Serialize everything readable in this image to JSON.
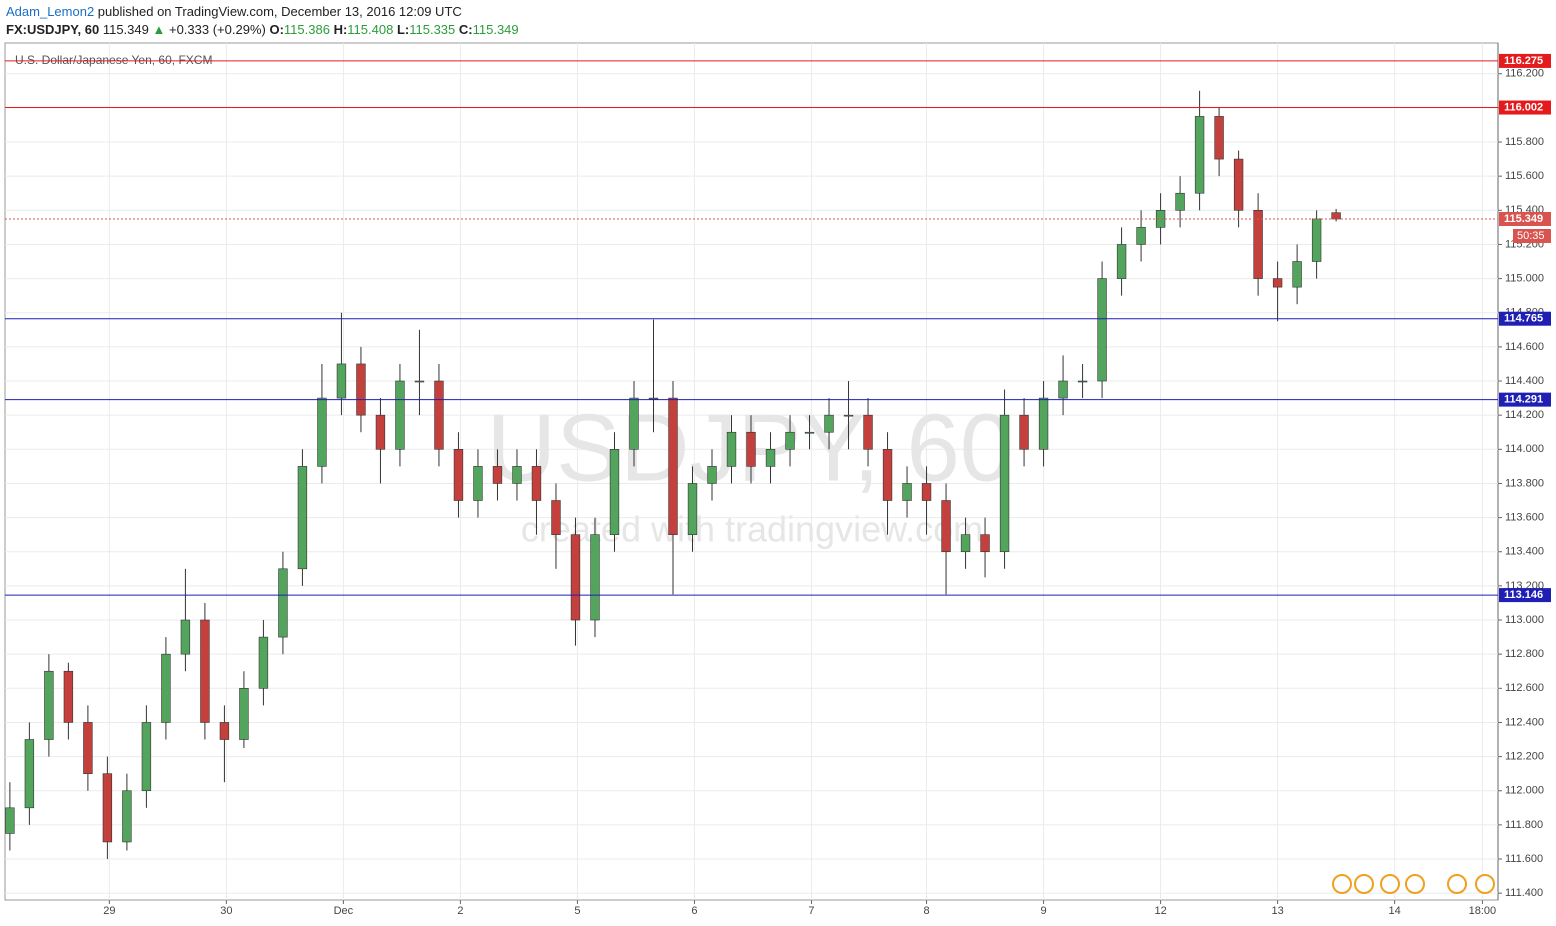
{
  "header": {
    "author": "Adam_Lemon2",
    "published": "published on TradingView.com, December 13, 2016 12:09 UTC"
  },
  "chart_data": {
    "type": "candlestick",
    "symbol": "FX:USDJPY, 60",
    "last": "115.349",
    "change_arrow": "▲",
    "change": "+0.333 (+0.29%)",
    "ohlc_labels": [
      "O:",
      "H:",
      "L:",
      "C:"
    ],
    "ohlc_values": [
      "115.386",
      "115.408",
      "115.335",
      "115.349"
    ],
    "legend": "U.S. Dollar/Japanese Yen, 60, FXCM",
    "watermark": "USDJPY, 60",
    "watermark_sub": "created with tradingview.com",
    "countdown": "50:35",
    "up_color": "#53a55e",
    "down_color": "#c4403c",
    "open": [
      111.75,
      111.9,
      112.3,
      112.7,
      112.4,
      112.1,
      111.7,
      112.0,
      112.4,
      112.8,
      113.0,
      112.4,
      112.3,
      112.6,
      112.9,
      113.3,
      113.9,
      114.3,
      114.5,
      114.2,
      114.0,
      114.4,
      114.4,
      114.0,
      113.7,
      113.9,
      113.8,
      113.9,
      113.7,
      113.5,
      113.0,
      113.5,
      114.0,
      114.3,
      114.3,
      113.5,
      113.8,
      113.9,
      114.1,
      113.9,
      114.0,
      114.1,
      114.1,
      114.2,
      114.2,
      114.0,
      113.7,
      113.8,
      113.7,
      113.4,
      113.5,
      113.4,
      114.2,
      114.0,
      114.3,
      114.4,
      114.4,
      115.0,
      115.2,
      115.3,
      115.4,
      115.5,
      115.95,
      115.7,
      115.4,
      115.0,
      114.95,
      115.1,
      115.386
    ],
    "high": [
      112.05,
      112.4,
      112.8,
      112.75,
      112.5,
      112.2,
      112.1,
      112.5,
      112.9,
      113.3,
      113.1,
      112.5,
      112.7,
      113.0,
      113.4,
      114.0,
      114.5,
      114.8,
      114.6,
      114.3,
      114.5,
      114.7,
      114.5,
      114.1,
      114.0,
      114.0,
      114.0,
      114.0,
      113.8,
      113.6,
      113.6,
      114.1,
      114.4,
      114.76,
      114.4,
      113.9,
      114.0,
      114.2,
      114.2,
      114.1,
      114.2,
      114.2,
      114.3,
      114.4,
      114.3,
      114.1,
      113.9,
      113.9,
      113.8,
      113.6,
      113.6,
      114.35,
      114.3,
      114.4,
      114.55,
      114.5,
      115.1,
      115.3,
      115.4,
      115.5,
      115.6,
      116.1,
      116.0,
      115.75,
      115.5,
      115.1,
      115.2,
      115.4,
      115.408
    ],
    "low": [
      111.65,
      111.8,
      112.2,
      112.3,
      112.0,
      111.6,
      111.65,
      111.9,
      112.3,
      112.7,
      112.3,
      112.05,
      112.25,
      112.5,
      112.8,
      113.2,
      113.8,
      114.2,
      114.1,
      113.8,
      113.9,
      114.2,
      113.9,
      113.6,
      113.6,
      113.7,
      113.7,
      113.5,
      113.3,
      112.85,
      112.9,
      113.4,
      113.9,
      114.1,
      113.15,
      113.4,
      113.7,
      113.8,
      113.8,
      113.8,
      113.9,
      114.0,
      114.0,
      114.0,
      113.9,
      113.5,
      113.6,
      113.5,
      113.15,
      113.3,
      113.25,
      113.3,
      113.9,
      113.9,
      114.2,
      114.3,
      114.3,
      114.9,
      115.1,
      115.2,
      115.3,
      115.4,
      115.6,
      115.3,
      114.9,
      114.75,
      114.85,
      115.0,
      115.335
    ],
    "close": [
      111.9,
      112.3,
      112.7,
      112.4,
      112.1,
      111.7,
      112.0,
      112.4,
      112.8,
      113.0,
      112.4,
      112.3,
      112.6,
      112.9,
      113.3,
      113.9,
      114.3,
      114.5,
      114.2,
      114.0,
      114.4,
      114.4,
      114.0,
      113.7,
      113.9,
      113.8,
      113.9,
      113.7,
      113.5,
      113.0,
      113.5,
      114.0,
      114.3,
      114.3,
      113.5,
      113.8,
      113.9,
      114.1,
      113.9,
      114.0,
      114.1,
      114.1,
      114.2,
      114.2,
      114.0,
      113.7,
      113.8,
      113.7,
      113.4,
      113.5,
      113.4,
      114.2,
      114.0,
      114.3,
      114.4,
      114.4,
      115.0,
      115.2,
      115.3,
      115.4,
      115.5,
      115.95,
      115.7,
      115.4,
      115.0,
      114.95,
      115.1,
      115.35,
      115.349
    ],
    "levels": [
      {
        "value": 116.275,
        "color": "#e41a1c",
        "dash": false
      },
      {
        "value": 116.002,
        "color": "#e41a1c",
        "dash": false
      },
      {
        "value": 115.349,
        "color": "#d9534f",
        "dash": true
      },
      {
        "value": 114.765,
        "color": "#1f1fb4",
        "dash": false
      },
      {
        "value": 114.291,
        "color": "#1f1fb4",
        "dash": false
      },
      {
        "value": 113.146,
        "color": "#1f1fb4",
        "dash": false
      }
    ],
    "xlim": [
      -0.25,
      76.3
    ],
    "xticks": [
      {
        "value": 5.1,
        "label": "29"
      },
      {
        "value": 11.1,
        "label": "30"
      },
      {
        "value": 17.1,
        "label": "Dec"
      },
      {
        "value": 23.1,
        "label": "2"
      },
      {
        "value": 29.1,
        "label": "5"
      },
      {
        "value": 35.1,
        "label": "6"
      },
      {
        "value": 41.1,
        "label": "7"
      },
      {
        "value": 47,
        "label": "8"
      },
      {
        "value": 53,
        "label": "9"
      },
      {
        "value": 59,
        "label": "12"
      },
      {
        "value": 65,
        "label": "13"
      },
      {
        "value": 71,
        "label": "14"
      },
      {
        "value": 75.5,
        "label": "18:00"
      }
    ],
    "ylim": [
      111.36,
      116.38
    ],
    "yticks": [
      {
        "value": 111.4,
        "label": "111.400"
      },
      {
        "value": 111.6,
        "label": "111.600"
      },
      {
        "value": 111.8,
        "label": "111.800"
      },
      {
        "value": 112,
        "label": "112.000"
      },
      {
        "value": 112.2,
        "label": "112.200"
      },
      {
        "value": 112.4,
        "label": "112.400"
      },
      {
        "value": 112.6,
        "label": "112.600"
      },
      {
        "value": 112.8,
        "label": "112.800"
      },
      {
        "value": 113,
        "label": "113.000"
      },
      {
        "value": 113.2,
        "label": "113.200"
      },
      {
        "value": 113.4,
        "label": "113.400"
      },
      {
        "value": 113.6,
        "label": "113.600"
      },
      {
        "value": 113.8,
        "label": "113.800"
      },
      {
        "value": 114,
        "label": "114.000"
      },
      {
        "value": 114.2,
        "label": "114.200"
      },
      {
        "value": 114.4,
        "label": "114.400"
      },
      {
        "value": 114.6,
        "label": "114.600"
      },
      {
        "value": 114.8,
        "label": "114.800"
      },
      {
        "value": 115,
        "label": "115.000"
      },
      {
        "value": 115.2,
        "label": "115.200"
      },
      {
        "value": 115.4,
        "label": "115.400"
      },
      {
        "value": 115.6,
        "label": "115.600"
      },
      {
        "value": 115.8,
        "label": "115.800"
      },
      {
        "value": 116,
        "label": "116.000"
      },
      {
        "value": 116.2,
        "label": "116.200"
      }
    ],
    "grid": true
  }
}
